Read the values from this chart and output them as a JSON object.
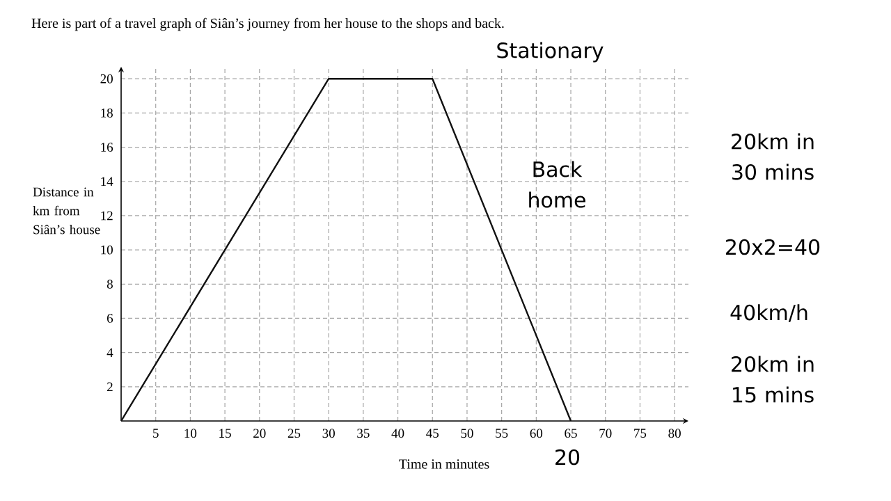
{
  "chart_data": {
    "type": "line",
    "title": "Here is part of a travel graph of Siân’s journey from her house to the shops and back.",
    "xlabel": "Time in minutes",
    "ylabel": "Distance in km from Siân’s house",
    "x": [
      0,
      30,
      45,
      65
    ],
    "series": [
      {
        "color": "#111111",
        "values": [
          0,
          20,
          20,
          0
        ]
      }
    ],
    "xlim": [
      0,
      82
    ],
    "ylim": [
      0,
      20.7
    ],
    "xticks": [
      5,
      10,
      15,
      20,
      25,
      30,
      35,
      40,
      45,
      50,
      55,
      60,
      65,
      70,
      75,
      80
    ],
    "yticks": [
      2,
      4,
      6,
      8,
      10,
      12,
      14,
      16,
      18,
      20
    ],
    "grid": true,
    "marker": "none",
    "line_style": "solid",
    "annotations": [
      "Stationary",
      "Back home",
      "20km in 30 mins",
      "20x2=40",
      "40km/h",
      "20km in 15 mins",
      "20"
    ]
  }
}
